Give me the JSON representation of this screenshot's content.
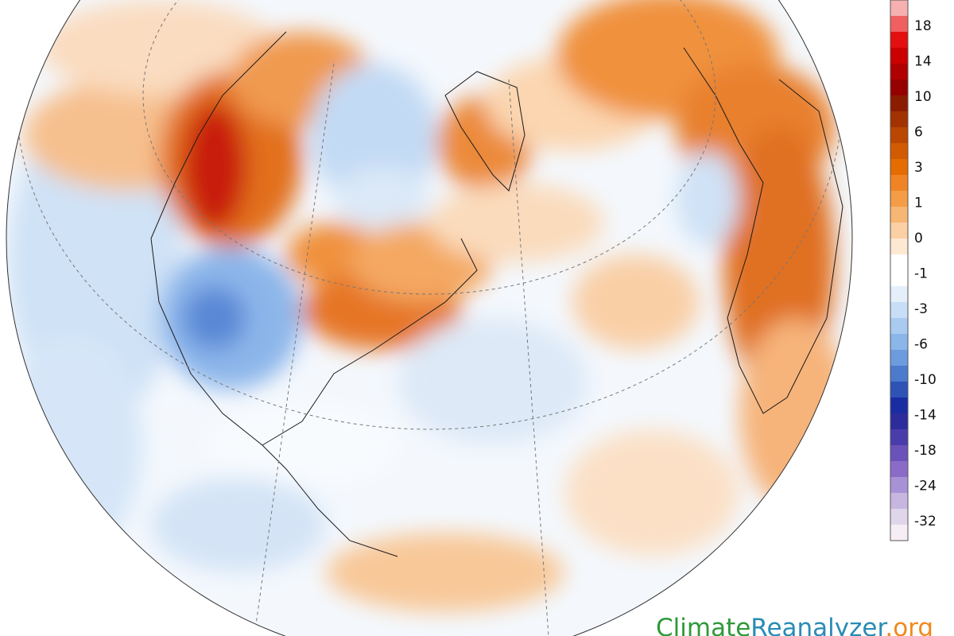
{
  "colorbar": {
    "labels": [
      18,
      14,
      10,
      6,
      3,
      1,
      0,
      -1,
      -3,
      -6,
      -10,
      -14,
      -18,
      -24,
      -32
    ],
    "colors": [
      "#f6b0b0",
      "#f06060",
      "#e41010",
      "#cc0000",
      "#b00000",
      "#960000",
      "#8c1c00",
      "#a23200",
      "#ba4600",
      "#d25a00",
      "#e46c00",
      "#f08424",
      "#f49c46",
      "#f8b674",
      "#fbd0a4",
      "#fde8d2",
      "#ffffff",
      "#ffffff",
      "#e4effa",
      "#c8def6",
      "#aacbf0",
      "#8ab6ea",
      "#6c9cde",
      "#4c7acc",
      "#2e52b6",
      "#1a2ca2",
      "#2c2c9c",
      "#4a3caa",
      "#6a52ba",
      "#8a6cc8",
      "#a892d6",
      "#c6b6e0",
      "#e0d6ea",
      "#f6eef4"
    ]
  },
  "watermark": {
    "parts": [
      "Climate",
      "Reanalyzer",
      ".org"
    ],
    "colors": [
      "#2e9a3a",
      "#2a8cb4",
      "#f08a1c"
    ]
  }
}
